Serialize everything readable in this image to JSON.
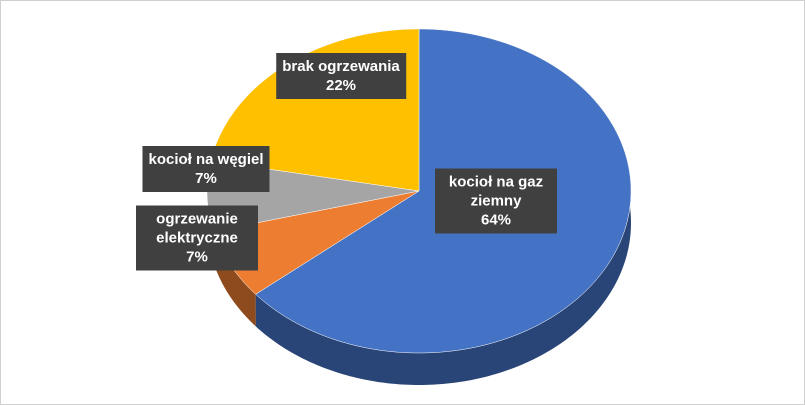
{
  "chart_data": {
    "type": "pie",
    "categories": [
      "kocioł na gaz ziemny",
      "ogrzewanie elektryczne",
      "kocioł na węgiel",
      "brak ogrzewania"
    ],
    "values": [
      64,
      7,
      7,
      22
    ],
    "value_labels": [
      "64%",
      "7%",
      "7%",
      "22%"
    ],
    "colors": [
      "#4472c4",
      "#ed7d31",
      "#a5a5a5",
      "#ffc000"
    ]
  }
}
